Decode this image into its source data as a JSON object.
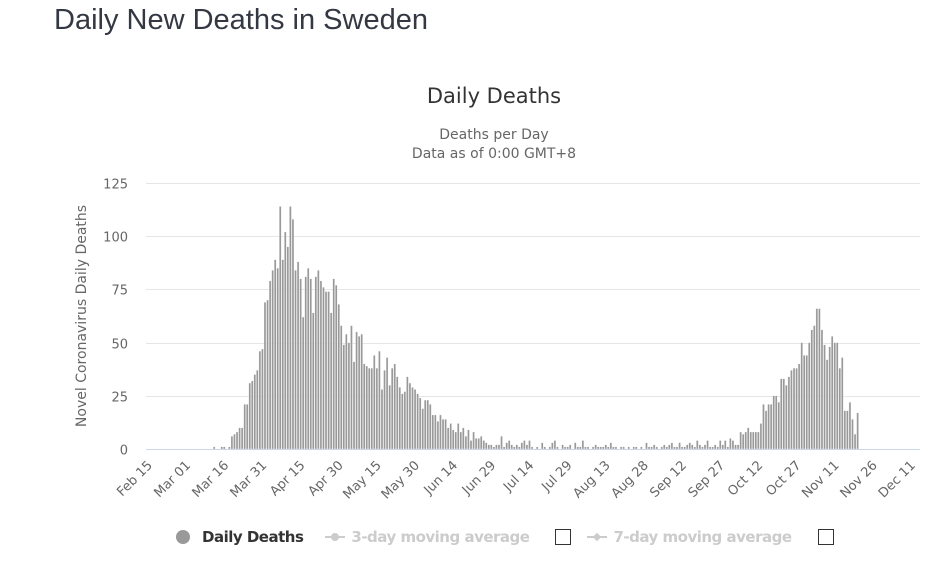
{
  "page": {
    "title": "Daily New Deaths in Sweden"
  },
  "legend": {
    "items": [
      {
        "label": "Daily Deaths",
        "active": true,
        "color": "#999999"
      },
      {
        "label": "3-day moving average",
        "active": false,
        "color": "#cccccc",
        "checked": false
      },
      {
        "label": "7-day moving average",
        "active": false,
        "color": "#cccccc",
        "checked": false
      }
    ]
  },
  "chart_data": {
    "type": "bar",
    "title": "Daily Deaths",
    "subtitle": [
      "Deaths per Day",
      "Data as of 0:00 GMT+8"
    ],
    "xlabel": "",
    "ylabel": "Novel Coronavirus Daily Deaths",
    "ylim": [
      0,
      125
    ],
    "yticks": [
      0,
      25,
      50,
      75,
      100,
      125
    ],
    "grid": true,
    "bar_color": "#999999",
    "x_start": "Feb 15",
    "xtick_labels": [
      "Feb 15",
      "Mar 01",
      "Mar 16",
      "Mar 31",
      "Apr 15",
      "Apr 30",
      "May 15",
      "May 30",
      "Jun 14",
      "Jun 29",
      "Jul 14",
      "Jul 29",
      "Aug 13",
      "Aug 28",
      "Sep 12",
      "Sep 27",
      "Oct 12",
      "Oct 27",
      "Nov 11",
      "Nov 26",
      "Dec 11"
    ],
    "xtick_interval_days": 15,
    "series": [
      {
        "name": "Daily Deaths",
        "values": [
          0,
          0,
          0,
          0,
          0,
          0,
          0,
          0,
          0,
          0,
          0,
          0,
          0,
          0,
          0,
          0,
          0,
          0,
          0,
          0,
          0,
          0,
          0,
          0,
          0,
          0,
          1,
          0,
          0,
          1,
          1,
          0,
          1,
          6,
          7,
          8,
          10,
          10,
          21,
          21,
          31,
          32,
          35,
          37,
          46,
          47,
          69,
          70,
          79,
          84,
          89,
          85,
          114,
          89,
          102,
          95,
          114,
          108,
          84,
          88,
          80,
          62,
          81,
          85,
          80,
          64,
          81,
          84,
          79,
          76,
          74,
          74,
          64,
          80,
          77,
          68,
          58,
          49,
          54,
          50,
          58,
          41,
          55,
          53,
          54,
          40,
          39,
          38,
          38,
          44,
          38,
          46,
          28,
          37,
          43,
          30,
          38,
          40,
          34,
          29,
          26,
          27,
          34,
          31,
          29,
          28,
          26,
          24,
          19,
          23,
          23,
          21,
          16,
          16,
          13,
          16,
          14,
          14,
          10,
          12,
          9,
          8,
          12,
          8,
          10,
          6,
          9,
          4,
          8,
          5,
          5,
          6,
          4,
          3,
          2,
          2,
          1,
          2,
          2,
          6,
          1,
          3,
          4,
          2,
          1,
          2,
          1,
          3,
          4,
          2,
          4,
          1,
          0,
          1,
          0,
          3,
          1,
          0,
          1,
          3,
          4,
          1,
          0,
          2,
          1,
          1,
          2,
          0,
          3,
          1,
          1,
          4,
          1,
          1,
          0,
          1,
          2,
          1,
          1,
          1,
          2,
          1,
          3,
          1,
          1,
          0,
          1,
          1,
          0,
          1,
          0,
          1,
          1,
          0,
          1,
          0,
          3,
          1,
          1,
          2,
          1,
          0,
          1,
          2,
          1,
          2,
          3,
          1,
          1,
          3,
          1,
          1,
          2,
          3,
          2,
          1,
          4,
          2,
          1,
          2,
          4,
          1,
          1,
          2,
          1,
          4,
          2,
          4,
          1,
          5,
          4,
          2,
          2,
          8,
          7,
          8,
          10,
          8,
          8,
          8,
          8,
          12,
          21,
          18,
          21,
          21,
          25,
          25,
          22,
          33,
          33,
          30,
          34,
          37,
          38,
          38,
          40,
          50,
          44,
          44,
          50,
          56,
          58,
          66,
          66,
          56,
          49,
          42,
          48,
          53,
          50,
          50,
          38,
          43,
          18,
          18,
          22,
          14,
          7,
          17
        ]
      }
    ]
  }
}
